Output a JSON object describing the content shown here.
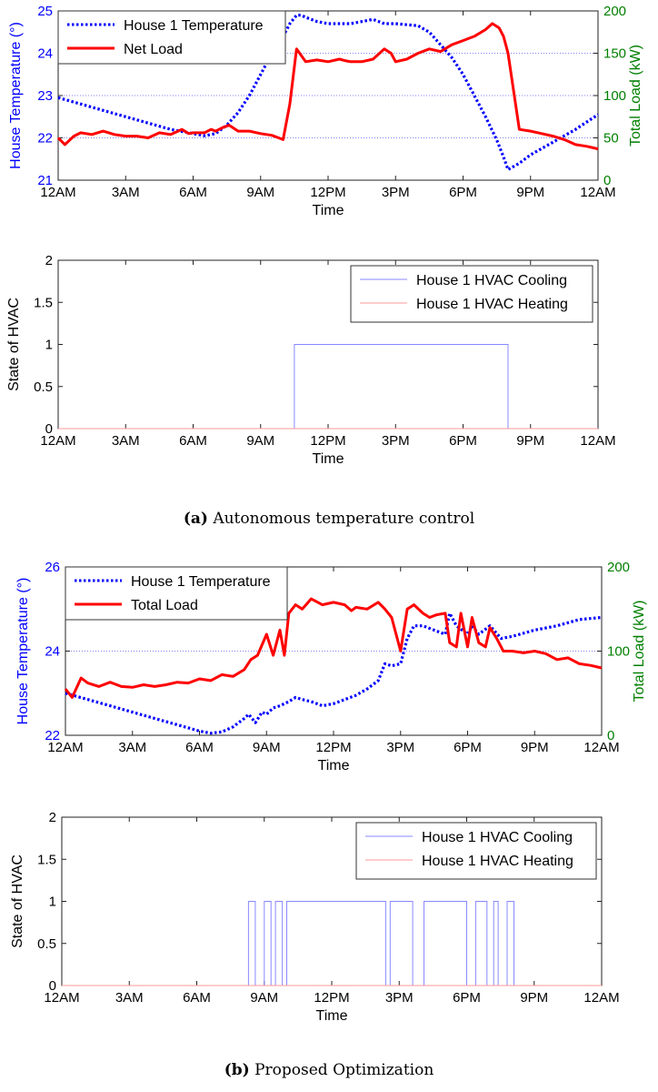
{
  "chart_data": [
    {
      "id": "a_top",
      "type": "line",
      "xlabel": "Time",
      "ylabel": "House Temperature (°)",
      "ylabel2": "Total Load (kW)",
      "x_ticks": [
        "12AM",
        "3AM",
        "6AM",
        "9AM",
        "12PM",
        "3PM",
        "6PM",
        "9PM",
        "12AM"
      ],
      "ylim": [
        21,
        25
      ],
      "yticks": [
        "21",
        "22",
        "23",
        "24",
        "25"
      ],
      "y2lim": [
        0,
        200
      ],
      "y2ticks": [
        "0",
        "50",
        "100",
        "150",
        "200"
      ],
      "grid": true,
      "legend_position": "top-left",
      "series": [
        {
          "name": "House 1 Temperature",
          "axis": "left",
          "color": "#0000ff",
          "style": "dotted",
          "x_hours": [
            0,
            1,
            2,
            3,
            4,
            5,
            6,
            6.5,
            7,
            7.5,
            8,
            8.5,
            9,
            9.5,
            10,
            10.3,
            10.6,
            10.8,
            11,
            11.5,
            12,
            13,
            14,
            14.5,
            15,
            16,
            16.5,
            17,
            17.5,
            18,
            18.5,
            19,
            19.5,
            19.8,
            20,
            20.5,
            21,
            22,
            23,
            24
          ],
          "values": [
            22.95,
            22.8,
            22.65,
            22.5,
            22.35,
            22.2,
            22.1,
            22.05,
            22.1,
            22.3,
            22.6,
            23.0,
            23.5,
            24.0,
            24.4,
            24.7,
            24.9,
            24.9,
            24.85,
            24.75,
            24.7,
            24.7,
            24.8,
            24.7,
            24.7,
            24.65,
            24.5,
            24.2,
            23.9,
            23.5,
            23.0,
            22.5,
            21.95,
            21.55,
            21.25,
            21.4,
            21.6,
            21.9,
            22.2,
            22.55
          ]
        },
        {
          "name": "Net Load",
          "axis": "right",
          "color": "#ff0000",
          "style": "solid",
          "x_hours": [
            0,
            0.3,
            0.7,
            1,
            1.5,
            2,
            2.5,
            3,
            3.5,
            4,
            4.5,
            5,
            5.5,
            5.8,
            6,
            6.5,
            6.8,
            7,
            7.3,
            7.6,
            8,
            8.5,
            9,
            9.5,
            9.8,
            10,
            10.3,
            10.6,
            11,
            11.5,
            12,
            12.5,
            12.8,
            13,
            13.5,
            14,
            14.5,
            14.8,
            15,
            15.5,
            16,
            16.5,
            17,
            17.5,
            18,
            18.5,
            19,
            19.3,
            19.6,
            19.8,
            20,
            20.5,
            21,
            21.5,
            22,
            22.5,
            23,
            23.5,
            24
          ],
          "values": [
            50,
            42,
            52,
            56,
            54,
            58,
            54,
            52,
            52,
            50,
            56,
            54,
            60,
            55,
            56,
            56,
            60,
            58,
            62,
            65,
            58,
            58,
            55,
            53,
            50,
            48,
            90,
            155,
            140,
            142,
            140,
            143,
            141,
            140,
            140,
            143,
            155,
            150,
            140,
            143,
            150,
            155,
            152,
            160,
            165,
            170,
            178,
            185,
            180,
            170,
            150,
            60,
            58,
            55,
            52,
            48,
            42,
            40,
            37
          ]
        }
      ]
    },
    {
      "id": "a_bottom",
      "type": "line",
      "xlabel": "Time",
      "ylabel": "State of HVAC",
      "x_ticks": [
        "12AM",
        "3AM",
        "6AM",
        "9AM",
        "12PM",
        "3PM",
        "6PM",
        "9PM",
        "12AM"
      ],
      "ylim": [
        0,
        2
      ],
      "yticks": [
        "0",
        "0.5",
        "1",
        "1.5",
        "2"
      ],
      "legend_position": "top-right",
      "series": [
        {
          "name": "House 1 HVAC Cooling",
          "color": "#8888ff",
          "on_intervals_hours": [
            [
              10.5,
              20
            ]
          ]
        },
        {
          "name": "House 1 HVAC Heating",
          "color": "#ff9999",
          "on_intervals_hours": []
        }
      ]
    },
    {
      "id": "b_top",
      "type": "line",
      "xlabel": "Time",
      "ylabel": "House Temperature (°)",
      "ylabel2": "Total Load (kW)",
      "x_ticks": [
        "12AM",
        "3AM",
        "6AM",
        "9AM",
        "12PM",
        "3PM",
        "6PM",
        "9PM",
        "12AM"
      ],
      "ylim": [
        22,
        26
      ],
      "yticks": [
        "22",
        "24",
        "26"
      ],
      "y2lim": [
        0,
        200
      ],
      "y2ticks": [
        "0",
        "100",
        "200"
      ],
      "grid": true,
      "legend_position": "top-left",
      "series": [
        {
          "name": "House 1 Temperature",
          "axis": "left",
          "color": "#0000ff",
          "style": "dotted",
          "x_hours": [
            0,
            1,
            2,
            3,
            4,
            5,
            6,
            6.5,
            7,
            7.5,
            8,
            8.2,
            8.5,
            8.8,
            9,
            9.3,
            9.6,
            10,
            10.3,
            10.6,
            11,
            11.5,
            12,
            12.5,
            13,
            13.5,
            14,
            14.3,
            14.6,
            15,
            15.3,
            15.6,
            16,
            16.5,
            17,
            17.2,
            17.5,
            18,
            18.2,
            18.5,
            19,
            19.5,
            20,
            21,
            22,
            23,
            24
          ],
          "values": [
            23.0,
            22.85,
            22.7,
            22.55,
            22.4,
            22.25,
            22.1,
            22.05,
            22.08,
            22.2,
            22.4,
            22.5,
            22.3,
            22.55,
            22.5,
            22.65,
            22.7,
            22.8,
            22.9,
            22.85,
            22.8,
            22.7,
            22.75,
            22.85,
            22.95,
            23.1,
            23.3,
            23.7,
            23.65,
            23.7,
            24.3,
            24.6,
            24.6,
            24.5,
            24.4,
            24.9,
            24.6,
            24.4,
            24.6,
            24.4,
            24.6,
            24.3,
            24.35,
            24.5,
            24.6,
            24.75,
            24.8
          ]
        },
        {
          "name": "Total Load",
          "axis": "right",
          "color": "#ff0000",
          "style": "solid",
          "x_hours": [
            0,
            0.3,
            0.7,
            1,
            1.5,
            2,
            2.5,
            3,
            3.5,
            4,
            4.5,
            5,
            5.5,
            6,
            6.5,
            7,
            7.5,
            8,
            8.3,
            8.6,
            9,
            9.3,
            9.6,
            9.8,
            10,
            10.3,
            10.6,
            11,
            11.5,
            12,
            12.5,
            12.8,
            13,
            13.5,
            14,
            14.3,
            14.6,
            15,
            15.3,
            15.6,
            16,
            16.3,
            16.6,
            17,
            17.2,
            17.5,
            17.7,
            18,
            18.2,
            18.5,
            18.8,
            19,
            19.3,
            19.6,
            20,
            20.5,
            21,
            21.5,
            22,
            22.5,
            23,
            23.5,
            24
          ],
          "values": [
            55,
            45,
            68,
            62,
            58,
            63,
            58,
            57,
            60,
            58,
            60,
            63,
            62,
            67,
            65,
            72,
            70,
            78,
            90,
            95,
            120,
            95,
            125,
            95,
            145,
            155,
            150,
            162,
            155,
            158,
            155,
            148,
            152,
            150,
            158,
            150,
            140,
            100,
            150,
            155,
            145,
            140,
            143,
            145,
            110,
            105,
            145,
            105,
            140,
            110,
            105,
            128,
            115,
            100,
            100,
            98,
            100,
            97,
            90,
            92,
            85,
            83,
            80
          ]
        }
      ]
    },
    {
      "id": "b_bottom",
      "type": "line",
      "xlabel": "Time",
      "ylabel": "State of HVAC",
      "x_ticks": [
        "12AM",
        "3AM",
        "6AM",
        "9AM",
        "12PM",
        "3PM",
        "6PM",
        "9PM",
        "12AM"
      ],
      "ylim": [
        0,
        2
      ],
      "yticks": [
        "0",
        "0.5",
        "1",
        "1.5",
        "2"
      ],
      "legend_position": "top-right",
      "series": [
        {
          "name": "House 1 HVAC Cooling",
          "color": "#8888ff",
          "on_intervals_hours": [
            [
              8.3,
              8.6
            ],
            [
              9.0,
              9.3
            ],
            [
              9.5,
              9.8
            ],
            [
              10.0,
              14.4
            ],
            [
              14.6,
              15.6
            ],
            [
              16.1,
              18.0
            ],
            [
              18.4,
              18.9
            ],
            [
              19.2,
              19.4
            ],
            [
              19.8,
              20.1
            ]
          ]
        },
        {
          "name": "House 1 HVAC Heating",
          "color": "#ff9999",
          "on_intervals_hours": []
        }
      ]
    }
  ],
  "captions": [
    {
      "label": "(a)",
      "text": "Autonomous temperature control"
    },
    {
      "label": "(b)",
      "text": "Proposed Optimization"
    }
  ]
}
